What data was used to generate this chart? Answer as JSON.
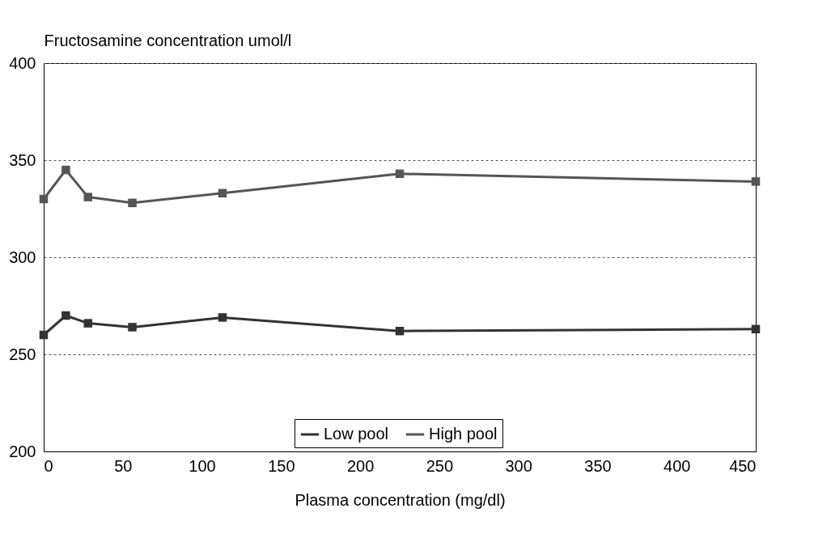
{
  "chart_data": {
    "type": "line",
    "ylabel": "Fructosamine concentration umol/l",
    "xlabel": "Plasma concentration (mg/dl)",
    "x": [
      0,
      14,
      28,
      56,
      113,
      225,
      450
    ],
    "series": [
      {
        "name": "Low pool",
        "color": "#333333",
        "values": [
          260,
          270,
          266,
          264,
          269,
          262,
          263
        ]
      },
      {
        "name": "High pool",
        "color": "#555555",
        "values": [
          330,
          345,
          331,
          328,
          333,
          343,
          339
        ]
      }
    ],
    "xlim": [
      0,
      450
    ],
    "xticks": [
      0,
      50,
      100,
      150,
      200,
      250,
      300,
      350,
      400,
      450
    ],
    "ylim": [
      200,
      400
    ],
    "yticks": [
      200,
      250,
      300,
      350,
      400
    ],
    "grid": "y",
    "legend": "bottom",
    "marker": "square",
    "line_style": "solid"
  }
}
